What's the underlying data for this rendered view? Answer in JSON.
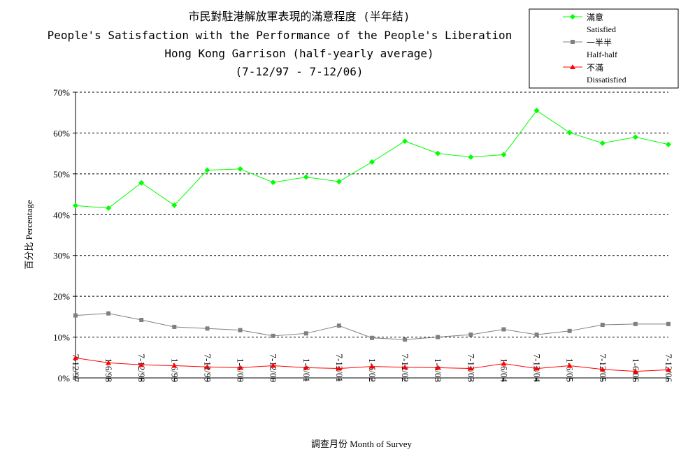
{
  "chart_data": {
    "type": "line",
    "title": "市民對駐港解放軍表現的滿意程度 (半年結)",
    "subtitle": [
      "People's Satisfaction with the Performance of the People's Liberation",
      "Hong Kong Garrison (half-yearly average)",
      "(7-12/97 - 7-12/06)"
    ],
    "xlabel": "調查月份 Month of Survey",
    "ylabel": "百分比 Percentage",
    "ylim": [
      0,
      70
    ],
    "yticks": [
      "0%",
      "10%",
      "20%",
      "30%",
      "40%",
      "50%",
      "60%",
      "70%"
    ],
    "grid": "horizontal dashed",
    "legend_position": "top-right",
    "categories": [
      "7-12/97",
      "1-6/98",
      "7-12/98",
      "1-6/99",
      "7-12/99",
      "1-6/00",
      "7-12/00",
      "1-6/01",
      "7-12/01",
      "1-6/02",
      "7-12/02",
      "1-6/03",
      "7-12/03",
      "1-6/04",
      "7-12/04",
      "1-6/05",
      "7-12/05",
      "1-6/06",
      "7-12/06"
    ],
    "series": [
      {
        "name": "滿意",
        "name_en": "Satisfied",
        "color": "#00ff00",
        "marker": "diamond",
        "values": [
          42.2,
          41.6,
          47.8,
          42.3,
          50.9,
          51.2,
          47.9,
          49.2,
          48.1,
          52.9,
          58.0,
          55.0,
          54.1,
          54.7,
          65.5,
          60.1,
          57.5,
          59.0,
          57.2
        ]
      },
      {
        "name": "一半半",
        "name_en": "Half-half",
        "color": "#808080",
        "marker": "square",
        "values": [
          15.3,
          15.8,
          14.2,
          12.5,
          12.1,
          11.7,
          10.3,
          10.9,
          12.8,
          9.8,
          9.4,
          10.0,
          10.6,
          11.9,
          10.6,
          11.5,
          13.0,
          13.2,
          13.2
        ]
      },
      {
        "name": "不滿",
        "name_en": "Dissatisfied",
        "color": "#ff0000",
        "marker": "triangle",
        "values": [
          4.9,
          3.7,
          3.2,
          3.0,
          2.7,
          2.5,
          3.0,
          2.5,
          2.3,
          2.8,
          2.6,
          2.5,
          2.3,
          3.5,
          2.3,
          3.0,
          2.1,
          1.6,
          2.0
        ]
      }
    ]
  }
}
